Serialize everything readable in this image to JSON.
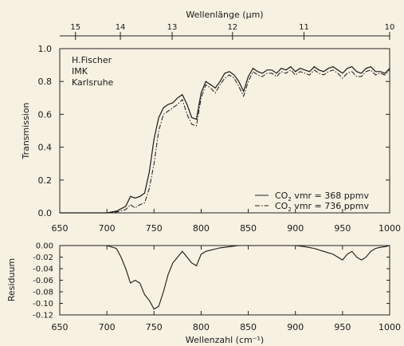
{
  "chart_data": [
    {
      "type": "line",
      "top_axis_label": "Wellenlänge (µm)",
      "top_ticks": [
        {
          "label": "15",
          "x": 666.7
        },
        {
          "label": "14",
          "x": 714.3
        },
        {
          "label": "13",
          "x": 769.2
        },
        {
          "label": "12",
          "x": 833.3
        },
        {
          "label": "11",
          "x": 909.1
        },
        {
          "label": "10",
          "x": 1000
        }
      ],
      "xlim": [
        650,
        1000
      ],
      "ylim": [
        0,
        1.0
      ],
      "x_ticks": [
        "650",
        "700",
        "750",
        "800",
        "850",
        "900",
        "950",
        "1000"
      ],
      "y_ticks": [
        "0.0",
        "0.2",
        "0.4",
        "0.6",
        "0.8",
        "1.0"
      ],
      "ylabel": "Transmission",
      "annotation": [
        "H.Fischer",
        "IMK",
        "Karlsruhe"
      ],
      "series": [
        {
          "name": "CO2 vmr = 368 ppmv",
          "x": [
            650,
            700,
            710,
            720,
            725,
            730,
            735,
            740,
            745,
            750,
            755,
            760,
            765,
            770,
            775,
            780,
            785,
            790,
            795,
            800,
            805,
            810,
            815,
            820,
            825,
            830,
            835,
            840,
            845,
            850,
            855,
            860,
            865,
            870,
            875,
            880,
            885,
            890,
            895,
            900,
            905,
            910,
            915,
            920,
            925,
            930,
            935,
            940,
            945,
            950,
            955,
            960,
            965,
            970,
            975,
            980,
            985,
            990,
            995,
            1000
          ],
          "y": [
            0,
            0,
            0.01,
            0.04,
            0.1,
            0.09,
            0.1,
            0.12,
            0.25,
            0.45,
            0.58,
            0.64,
            0.66,
            0.67,
            0.7,
            0.72,
            0.66,
            0.58,
            0.57,
            0.73,
            0.8,
            0.78,
            0.76,
            0.8,
            0.85,
            0.86,
            0.84,
            0.8,
            0.74,
            0.83,
            0.88,
            0.86,
            0.85,
            0.87,
            0.87,
            0.85,
            0.88,
            0.87,
            0.89,
            0.86,
            0.88,
            0.87,
            0.86,
            0.89,
            0.87,
            0.86,
            0.88,
            0.89,
            0.87,
            0.85,
            0.88,
            0.89,
            0.86,
            0.85,
            0.88,
            0.89,
            0.86,
            0.86,
            0.85,
            0.88
          ]
        },
        {
          "name": "CO2 vmr = 736 ppmv",
          "x": [
            650,
            700,
            710,
            720,
            725,
            730,
            735,
            740,
            745,
            750,
            755,
            760,
            765,
            770,
            775,
            780,
            785,
            790,
            795,
            800,
            805,
            810,
            815,
            820,
            825,
            830,
            835,
            840,
            845,
            850,
            855,
            860,
            865,
            870,
            875,
            880,
            885,
            890,
            895,
            900,
            905,
            910,
            915,
            920,
            925,
            930,
            935,
            940,
            945,
            950,
            955,
            960,
            965,
            970,
            975,
            980,
            985,
            990,
            995,
            1000
          ],
          "y": [
            0,
            0,
            0.005,
            0.02,
            0.05,
            0.03,
            0.05,
            0.06,
            0.15,
            0.3,
            0.5,
            0.6,
            0.62,
            0.64,
            0.66,
            0.69,
            0.6,
            0.54,
            0.53,
            0.7,
            0.78,
            0.76,
            0.73,
            0.78,
            0.82,
            0.84,
            0.82,
            0.77,
            0.71,
            0.8,
            0.86,
            0.84,
            0.83,
            0.85,
            0.85,
            0.83,
            0.86,
            0.85,
            0.87,
            0.84,
            0.86,
            0.85,
            0.84,
            0.87,
            0.85,
            0.84,
            0.86,
            0.87,
            0.85,
            0.82,
            0.85,
            0.86,
            0.83,
            0.83,
            0.86,
            0.87,
            0.84,
            0.85,
            0.84,
            0.87
          ]
        }
      ],
      "legend": [
        {
          "prefix": "CO",
          "sub": "2",
          "text": " vmr = 368 ppmv",
          "style": "solid"
        },
        {
          "prefix": "CO",
          "sub": "2",
          "text": " vmr = 736 ppmv",
          "style": "dashdot"
        }
      ]
    },
    {
      "type": "line",
      "xlim": [
        650,
        1000
      ],
      "ylim": [
        -0.12,
        0.0
      ],
      "x_ticks": [
        "650",
        "700",
        "750",
        "800",
        "850",
        "900",
        "950",
        "1000"
      ],
      "y_ticks": [
        "0.00",
        "-0.02",
        "-0.04",
        "-0.06",
        "-0.08",
        "-0.10",
        "-0.12"
      ],
      "ylabel": "Residuum",
      "xlabel": "Wellenzahl (cm⁻¹)",
      "series": [
        {
          "name": "Residuum",
          "x": [
            650,
            700,
            710,
            715,
            720,
            725,
            730,
            735,
            740,
            745,
            750,
            755,
            760,
            765,
            770,
            775,
            780,
            785,
            790,
            795,
            800,
            805,
            810,
            815,
            820,
            830,
            840,
            850,
            860,
            870,
            880,
            890,
            900,
            910,
            920,
            930,
            940,
            945,
            950,
            955,
            960,
            965,
            970,
            975,
            980,
            985,
            990,
            995,
            1000
          ],
          "y": [
            0,
            0,
            -0.005,
            -0.02,
            -0.04,
            -0.065,
            -0.06,
            -0.065,
            -0.085,
            -0.095,
            -0.11,
            -0.105,
            -0.08,
            -0.05,
            -0.03,
            -0.02,
            -0.01,
            -0.02,
            -0.03,
            -0.035,
            -0.015,
            -0.01,
            -0.008,
            -0.006,
            -0.004,
            -0.002,
            0,
            0,
            0,
            0,
            0,
            0,
            0,
            -0.002,
            -0.005,
            -0.01,
            -0.015,
            -0.02,
            -0.025,
            -0.015,
            -0.01,
            -0.02,
            -0.025,
            -0.02,
            -0.01,
            -0.005,
            -0.003,
            -0.002,
            0
          ]
        }
      ]
    }
  ]
}
